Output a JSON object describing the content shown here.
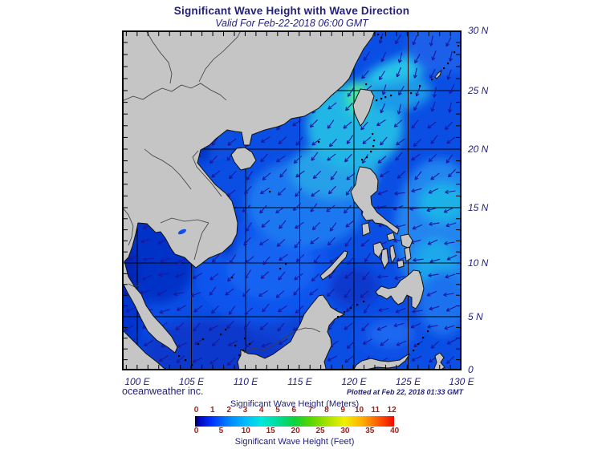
{
  "title": "Significant Wave Height with Wave Direction",
  "subtitle": "Valid For Feb-22-2018 06:00 GMT",
  "credit": "oceanweather inc.",
  "plotted_at": "Plotted at Feb 22, 2018 01:33 GMT",
  "map": {
    "lat_labels": [
      "30 N",
      "25 N",
      "20 N",
      "15 N",
      "10 N",
      "5 N",
      "0"
    ],
    "lon_labels": [
      "100 E",
      "105 E",
      "110 E",
      "115 E",
      "120 E",
      "125 E",
      "130 E"
    ]
  },
  "legend": {
    "meters_title": "Significant Wave Height (Meters)",
    "feet_title": "Significant Wave Height (Feet)",
    "meters_ticks": [
      "0",
      "1",
      "2",
      "3",
      "4",
      "5",
      "6",
      "7",
      "8",
      "9",
      "10",
      "11",
      "12"
    ],
    "feet_ticks": [
      "0",
      "5",
      "10",
      "15",
      "20",
      "25",
      "30",
      "35",
      "40"
    ],
    "tick_color": "#9c1f15",
    "gradient": [
      [
        "0",
        "#000000"
      ],
      [
        "0.015",
        "#0000b4"
      ],
      [
        "0.083",
        "#0032ff"
      ],
      [
        "0.167",
        "#0082ff"
      ],
      [
        "0.25",
        "#00b9ff"
      ],
      [
        "0.333",
        "#00e6dc"
      ],
      [
        "0.417",
        "#00dc96"
      ],
      [
        "0.5",
        "#0cd23c"
      ],
      [
        "0.583",
        "#5ad700"
      ],
      [
        "0.667",
        "#aae100"
      ],
      [
        "0.75",
        "#f0f000"
      ],
      [
        "0.833",
        "#ffb400"
      ],
      [
        "0.917",
        "#ff5f00"
      ],
      [
        "1",
        "#f00a00"
      ]
    ]
  },
  "colors": {
    "text_navy": "#22227e",
    "land_gray": "#c5c5c5",
    "sea_base_blue": "#0a4ee4",
    "arrow_navy": "#1818a0"
  },
  "chart_data": {
    "type": "heatmap",
    "title": "Significant Wave Height with Wave Direction",
    "valid_time": "Feb-22-2018 06:00 GMT",
    "lon_range_deg_e": [
      100,
      130
    ],
    "lat_range_deg_n": [
      0,
      30
    ],
    "colorbar_meters": [
      0,
      1,
      2,
      3,
      4,
      5,
      6,
      7,
      8,
      9,
      10,
      11,
      12
    ],
    "colorbar_feet": [
      0,
      5,
      10,
      15,
      20,
      25,
      30,
      35,
      40
    ],
    "wave_height_m_by_region": {
      "taiwan_strait": 4.0,
      "luzon_strait": 3.0,
      "ryukyu_band_northeast": 3.0,
      "northern_south_china_sea": 2.5,
      "central_south_china_sea": 2.0,
      "gulf_of_tonkin": 1.5,
      "gulf_of_thailand": 1.0,
      "andaman_sea_edge": 1.0,
      "pacific_east_of_philippines": 2.5,
      "sulu_sea": 1.0,
      "celebes_sea": 1.5
    },
    "wave_direction": "predominantly toward southwest (northeast monsoon); toward west east of the Philippines and in the Gulf of Thailand, toward south-southwest northeast of Taiwan"
  }
}
